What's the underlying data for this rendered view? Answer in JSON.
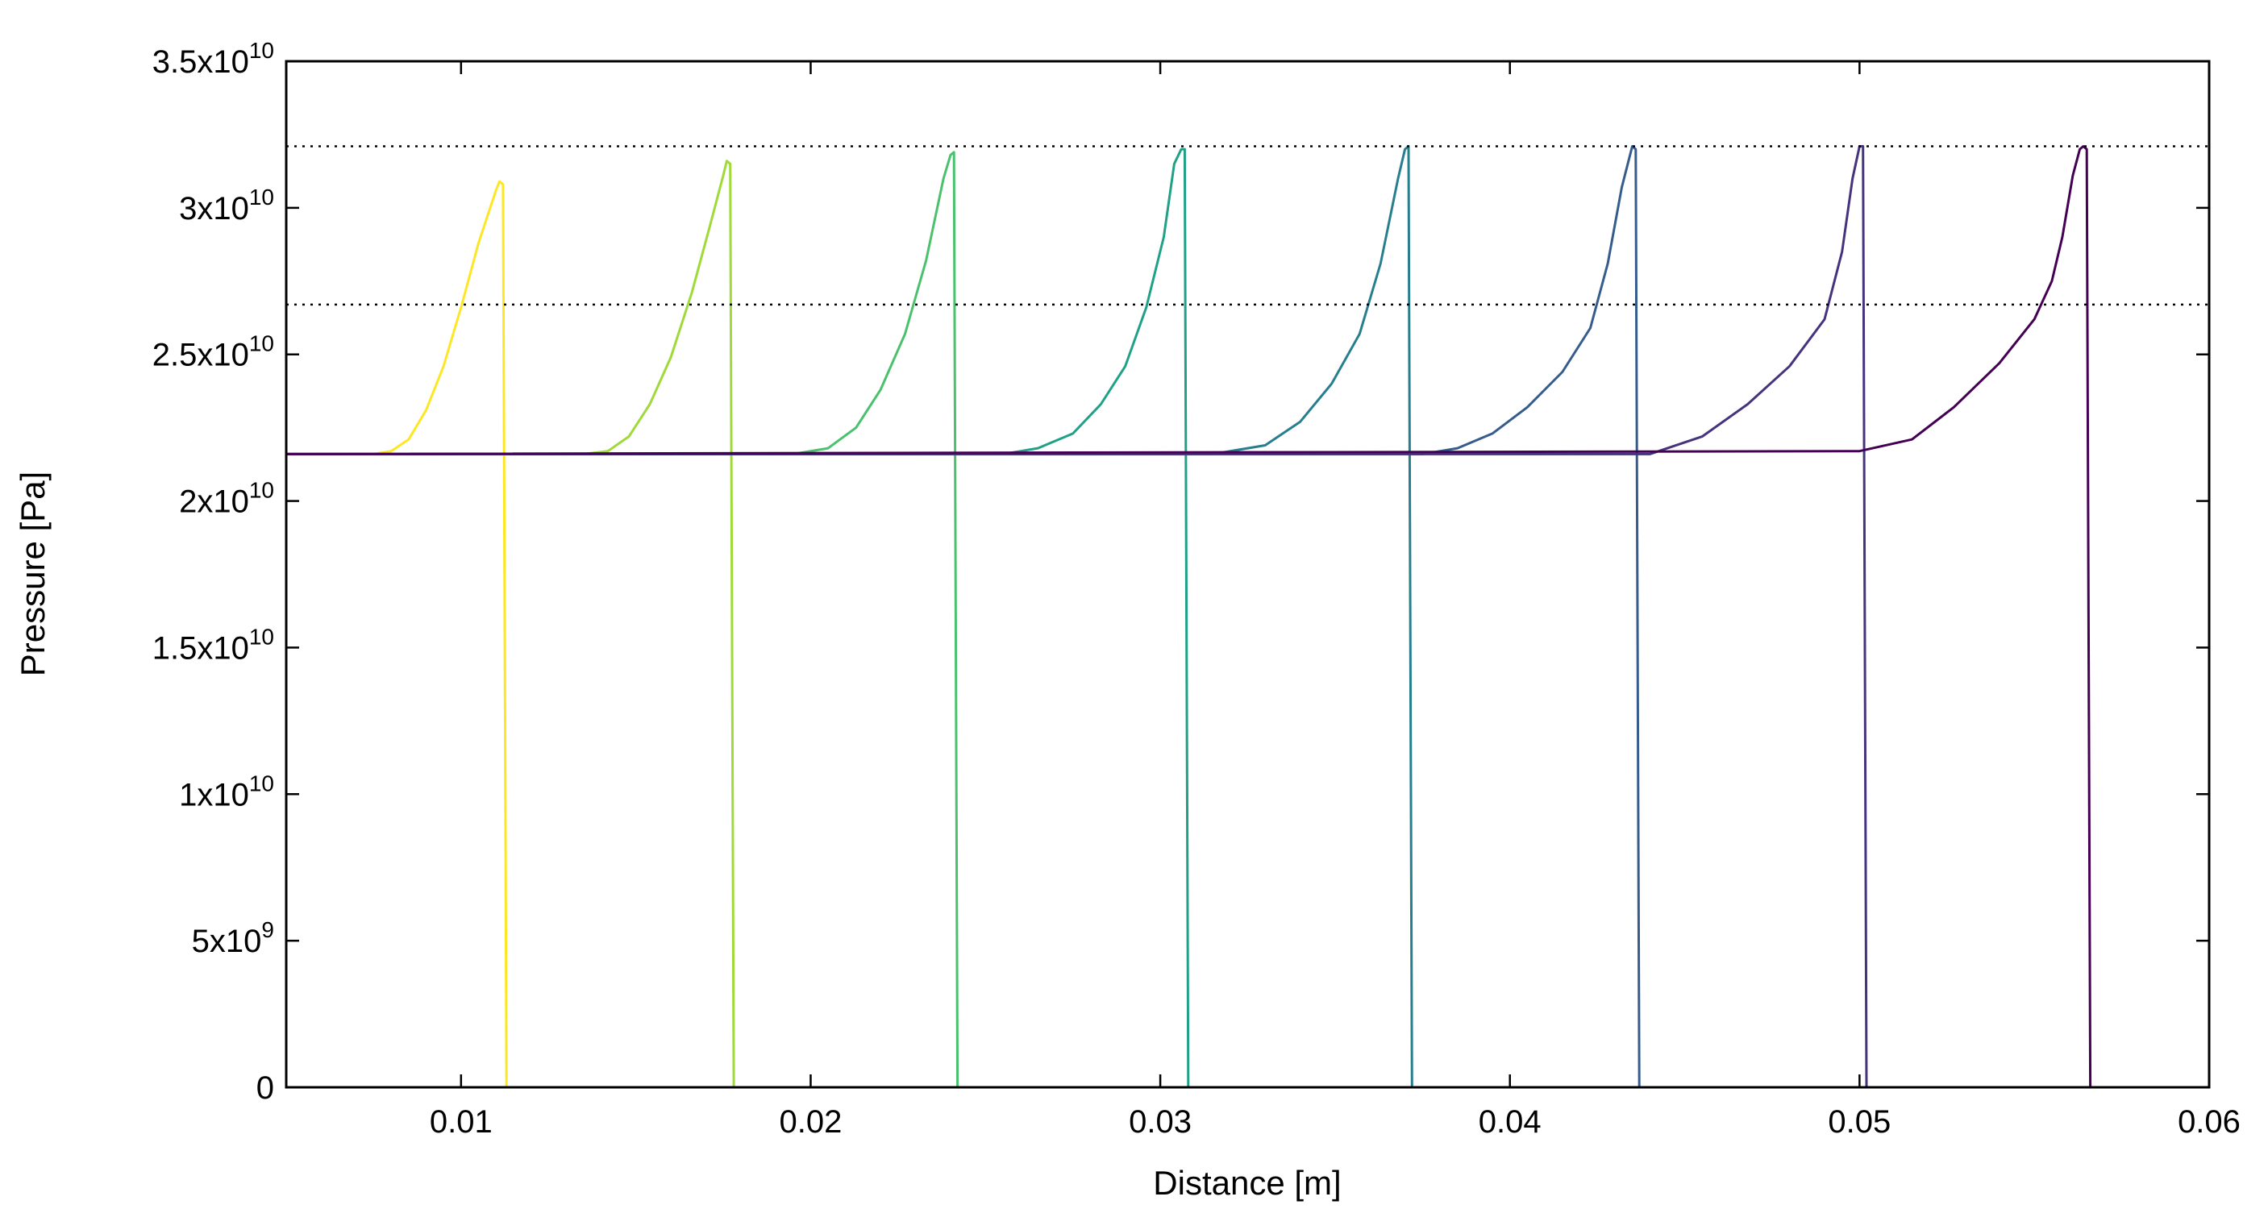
{
  "chart_data": {
    "type": "line",
    "xlabel": "Distance  [m]",
    "ylabel": "Pressure  [Pa]",
    "xlim": [
      0.005,
      0.06
    ],
    "ylim": [
      0,
      35000000000
    ],
    "grid": false,
    "x_ticks": [
      {
        "value": 0.01,
        "label": "0.01"
      },
      {
        "value": 0.02,
        "label": "0.02"
      },
      {
        "value": 0.03,
        "label": "0.03"
      },
      {
        "value": 0.04,
        "label": "0.04"
      },
      {
        "value": 0.05,
        "label": "0.05"
      },
      {
        "value": 0.06,
        "label": "0.06"
      }
    ],
    "y_ticks": [
      {
        "value": 0,
        "mantissa": "0",
        "exponent": ""
      },
      {
        "value": 5000000000,
        "mantissa": "5x10",
        "exponent": "9"
      },
      {
        "value": 10000000000,
        "mantissa": "1x10",
        "exponent": "10"
      },
      {
        "value": 15000000000,
        "mantissa": "1.5x10",
        "exponent": "10"
      },
      {
        "value": 20000000000,
        "mantissa": "2x10",
        "exponent": "10"
      },
      {
        "value": 25000000000,
        "mantissa": "2.5x10",
        "exponent": "10"
      },
      {
        "value": 30000000000,
        "mantissa": "3x10",
        "exponent": "10"
      },
      {
        "value": 35000000000,
        "mantissa": "3.5x10",
        "exponent": "10"
      }
    ],
    "reference_lines": [
      {
        "y": 32100000000,
        "style": "dotted",
        "color": "#000000"
      },
      {
        "y": 26700000000,
        "style": "dotted",
        "color": "#000000"
      }
    ],
    "baseline": 21600000000,
    "series": [
      {
        "color": "#fde725",
        "x": [
          0.005,
          0.0075,
          0.008,
          0.0085,
          0.009,
          0.0095,
          0.01,
          0.0105,
          0.011,
          0.0111,
          0.0112,
          0.0113,
          0.06
        ],
        "y": [
          21600000000,
          21600000000,
          21700000000,
          22100000000,
          23100000000,
          24600000000,
          26600000000,
          28800000000,
          30600000000,
          30900000000,
          30800000000,
          0,
          0
        ]
      },
      {
        "color": "#a0da39",
        "x": [
          0.005,
          0.0135,
          0.0142,
          0.0148,
          0.0154,
          0.016,
          0.0166,
          0.0171,
          0.0175,
          0.0176,
          0.0177,
          0.0178,
          0.06
        ],
        "y": [
          21600000000,
          21600000000,
          21700000000,
          22200000000,
          23300000000,
          24900000000,
          27100000000,
          29300000000,
          31100000000,
          31600000000,
          31500000000,
          0,
          0
        ]
      },
      {
        "color": "#4ac16d",
        "x": [
          0.005,
          0.0195,
          0.0205,
          0.0213,
          0.022,
          0.0227,
          0.0233,
          0.0238,
          0.024,
          0.0241,
          0.0242,
          0.06
        ],
        "y": [
          21600000000,
          21600000000,
          21800000000,
          22500000000,
          23800000000,
          25700000000,
          28200000000,
          31000000000,
          31800000000,
          31900000000,
          0,
          0
        ]
      },
      {
        "color": "#1fa187",
        "x": [
          0.005,
          0.0255,
          0.0265,
          0.0275,
          0.0283,
          0.029,
          0.0296,
          0.0301,
          0.0304,
          0.0306,
          0.0307,
          0.0308,
          0.06
        ],
        "y": [
          21600000000,
          21600000000,
          21800000000,
          22300000000,
          23300000000,
          24600000000,
          26600000000,
          29000000000,
          31500000000,
          32000000000,
          32000000000,
          0,
          0
        ]
      },
      {
        "color": "#277f8e",
        "x": [
          0.005,
          0.0315,
          0.033,
          0.034,
          0.0349,
          0.0357,
          0.0363,
          0.0368,
          0.037,
          0.0371,
          0.0372,
          0.06
        ],
        "y": [
          21600000000,
          21600000000,
          21900000000,
          22700000000,
          24000000000,
          25700000000,
          28100000000,
          31000000000,
          32000000000,
          32100000000,
          0,
          0
        ]
      },
      {
        "color": "#365c8d",
        "x": [
          0.005,
          0.0375,
          0.0385,
          0.0395,
          0.0405,
          0.0415,
          0.0423,
          0.0428,
          0.0432,
          0.0435,
          0.0436,
          0.0437,
          0.06
        ],
        "y": [
          21600000000,
          21600000000,
          21800000000,
          22300000000,
          23200000000,
          24400000000,
          25900000000,
          28100000000,
          30700000000,
          32100000000,
          32000000000,
          0,
          0
        ]
      },
      {
        "color": "#46337e",
        "x": [
          0.005,
          0.044,
          0.0455,
          0.0468,
          0.048,
          0.049,
          0.0495,
          0.0498,
          0.05,
          0.0501,
          0.0502,
          0.06
        ],
        "y": [
          21600000000,
          21600000000,
          22200000000,
          23300000000,
          24600000000,
          26200000000,
          28500000000,
          31000000000,
          32100000000,
          32100000000,
          0,
          0
        ]
      },
      {
        "color": "#440154",
        "x": [
          0.005,
          0.05,
          0.0515,
          0.0527,
          0.054,
          0.055,
          0.0555,
          0.0558,
          0.0561,
          0.0563,
          0.0564,
          0.0565,
          0.0566,
          0.06
        ],
        "y": [
          21600000000,
          21700000000,
          22100000000,
          23200000000,
          24700000000,
          26200000000,
          27500000000,
          29000000000,
          31100000000,
          32000000000,
          32100000000,
          32000000000,
          0,
          0
        ]
      }
    ]
  }
}
